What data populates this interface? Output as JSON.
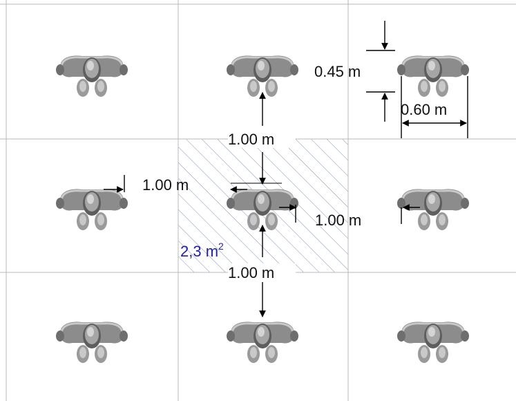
{
  "colors": {
    "grid_line": "#b8b8b8",
    "hatch": "#7f95bf",
    "arrow": "#000000",
    "area_text": "#1f1fa8",
    "person_fill": "#8c8c8c",
    "person_highlight": "#c9c9c9",
    "person_dark": "#5e5e5e"
  },
  "icons": {
    "person": "person-top-view-icon"
  },
  "grid": {
    "rows": 3,
    "cols": 3
  },
  "labels": {
    "top_spacing": "1.00 m",
    "bottom_spacing": "1.00 m",
    "left_spacing": "1.00 m",
    "right_spacing": "1.00 m",
    "person_depth": "0.45 m",
    "person_width": "0.60 m"
  },
  "area": {
    "value": "2,3 m",
    "exponent": "2"
  }
}
